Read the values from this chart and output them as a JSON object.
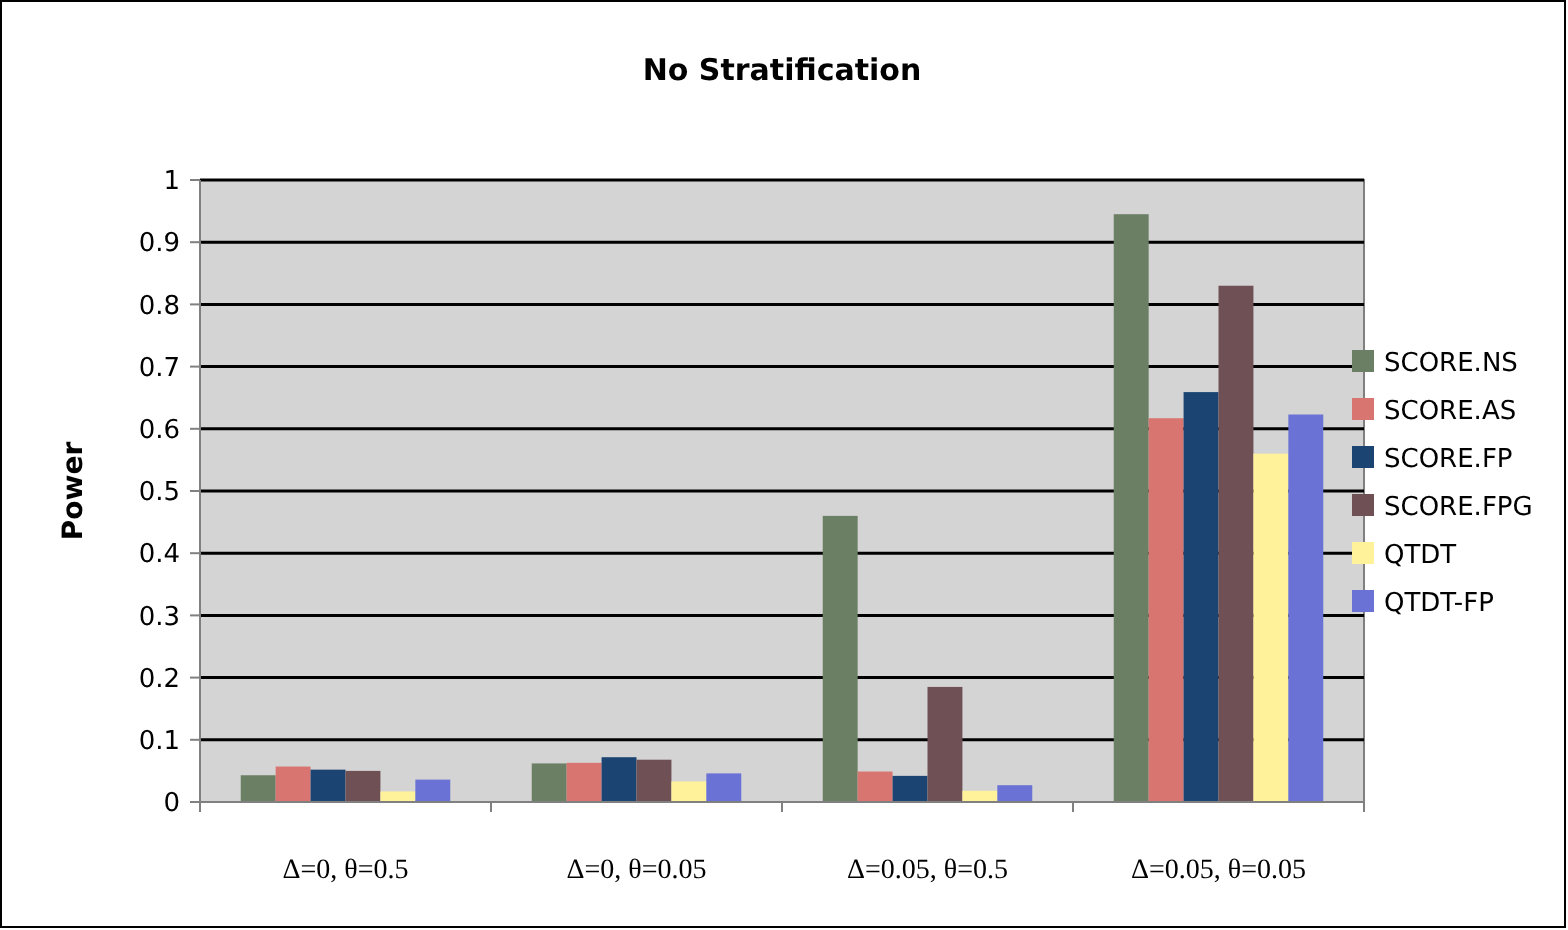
{
  "chart_data": {
    "type": "bar",
    "title": "No Stratification",
    "ylabel": "Power",
    "categories": [
      "Δ=0, θ=0.5",
      "Δ=0, θ=0.05",
      "Δ=0.05, θ=0.5",
      "Δ=0.05, θ=0.05"
    ],
    "series": [
      {
        "name": "SCORE.NS",
        "color": "#6b7f64",
        "values": [
          0.043,
          0.062,
          0.46,
          0.945
        ]
      },
      {
        "name": "SCORE.AS",
        "color": "#d97570",
        "values": [
          0.057,
          0.063,
          0.049,
          0.617
        ]
      },
      {
        "name": "SCORE.FP",
        "color": "#1b4472",
        "values": [
          0.052,
          0.072,
          0.042,
          0.659
        ]
      },
      {
        "name": "SCORE.FPG",
        "color": "#6e5055",
        "values": [
          0.05,
          0.068,
          0.185,
          0.83
        ]
      },
      {
        "name": "QTDT",
        "color": "#fff29a",
        "values": [
          0.017,
          0.033,
          0.018,
          0.56
        ]
      },
      {
        "name": "QTDT-FP",
        "color": "#6b72d6",
        "values": [
          0.036,
          0.046,
          0.027,
          0.623
        ]
      }
    ],
    "ylim": [
      0,
      1
    ],
    "yticks": [
      0,
      0.1,
      0.2,
      0.3,
      0.4,
      0.5,
      0.6,
      0.7,
      0.8,
      0.9,
      1
    ],
    "grid": "y",
    "legend": "right"
  }
}
